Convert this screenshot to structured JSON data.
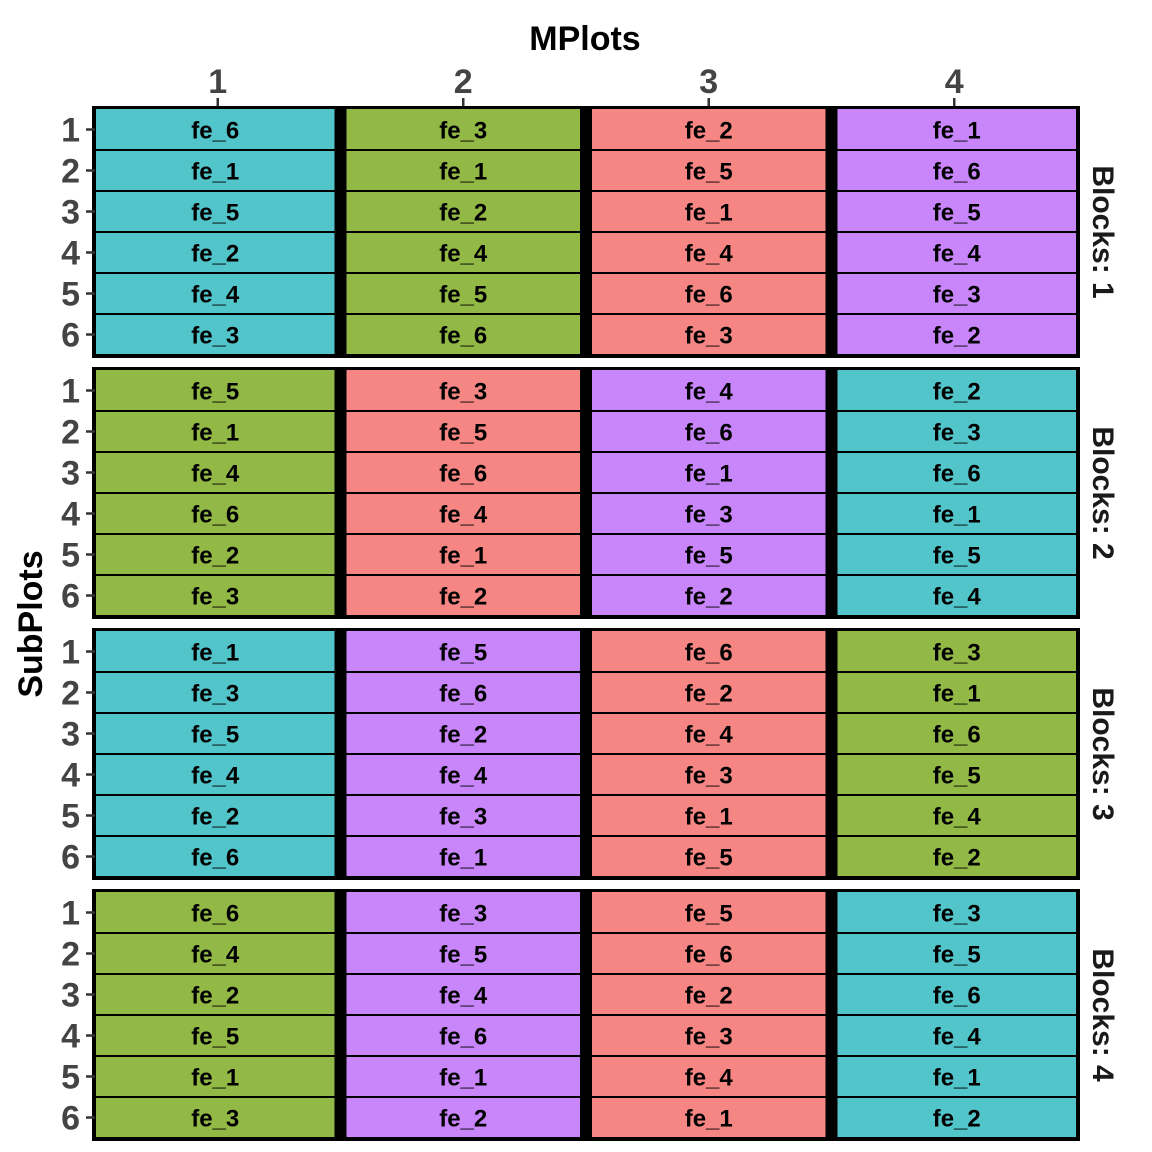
{
  "chart_data": {
    "type": "heatmap",
    "xlabel": "MPlots",
    "ylabel": "SubPlots",
    "x_ticks": [
      "1",
      "2",
      "3",
      "4"
    ],
    "y_ticks": [
      "1",
      "2",
      "3",
      "4",
      "5",
      "6"
    ],
    "colors": {
      "fe_cyan": "#51C5CA",
      "fe_green": "#92B846",
      "fe_red": "#F58683",
      "fe_purple": "#C986FB"
    },
    "panels": [
      {
        "strip_label": "Blocks: 1",
        "columns": [
          {
            "mplot": "1",
            "color": "#51C5CA",
            "labels": [
              "fe_6",
              "fe_1",
              "fe_5",
              "fe_2",
              "fe_4",
              "fe_3"
            ]
          },
          {
            "mplot": "2",
            "color": "#92B846",
            "labels": [
              "fe_3",
              "fe_1",
              "fe_2",
              "fe_4",
              "fe_5",
              "fe_6"
            ]
          },
          {
            "mplot": "3",
            "color": "#F58683",
            "labels": [
              "fe_2",
              "fe_5",
              "fe_1",
              "fe_4",
              "fe_6",
              "fe_3"
            ]
          },
          {
            "mplot": "4",
            "color": "#C986FB",
            "labels": [
              "fe_1",
              "fe_6",
              "fe_5",
              "fe_4",
              "fe_3",
              "fe_2"
            ]
          }
        ]
      },
      {
        "strip_label": "Blocks: 2",
        "columns": [
          {
            "mplot": "1",
            "color": "#92B846",
            "labels": [
              "fe_5",
              "fe_1",
              "fe_4",
              "fe_6",
              "fe_2",
              "fe_3"
            ]
          },
          {
            "mplot": "2",
            "color": "#F58683",
            "labels": [
              "fe_3",
              "fe_5",
              "fe_6",
              "fe_4",
              "fe_1",
              "fe_2"
            ]
          },
          {
            "mplot": "3",
            "color": "#C986FB",
            "labels": [
              "fe_4",
              "fe_6",
              "fe_1",
              "fe_3",
              "fe_5",
              "fe_2"
            ]
          },
          {
            "mplot": "4",
            "color": "#51C5CA",
            "labels": [
              "fe_2",
              "fe_3",
              "fe_6",
              "fe_1",
              "fe_5",
              "fe_4"
            ]
          }
        ]
      },
      {
        "strip_label": "Blocks: 3",
        "columns": [
          {
            "mplot": "1",
            "color": "#51C5CA",
            "labels": [
              "fe_1",
              "fe_3",
              "fe_5",
              "fe_4",
              "fe_2",
              "fe_6"
            ]
          },
          {
            "mplot": "2",
            "color": "#C986FB",
            "labels": [
              "fe_5",
              "fe_6",
              "fe_2",
              "fe_4",
              "fe_3",
              "fe_1"
            ]
          },
          {
            "mplot": "3",
            "color": "#F58683",
            "labels": [
              "fe_6",
              "fe_2",
              "fe_4",
              "fe_3",
              "fe_1",
              "fe_5"
            ]
          },
          {
            "mplot": "4",
            "color": "#92B846",
            "labels": [
              "fe_3",
              "fe_1",
              "fe_6",
              "fe_5",
              "fe_4",
              "fe_2"
            ]
          }
        ]
      },
      {
        "strip_label": "Blocks: 4",
        "columns": [
          {
            "mplot": "1",
            "color": "#92B846",
            "labels": [
              "fe_6",
              "fe_4",
              "fe_2",
              "fe_5",
              "fe_1",
              "fe_3"
            ]
          },
          {
            "mplot": "2",
            "color": "#C986FB",
            "labels": [
              "fe_3",
              "fe_5",
              "fe_4",
              "fe_6",
              "fe_1",
              "fe_2"
            ]
          },
          {
            "mplot": "3",
            "color": "#F58683",
            "labels": [
              "fe_5",
              "fe_6",
              "fe_2",
              "fe_3",
              "fe_4",
              "fe_1"
            ]
          },
          {
            "mplot": "4",
            "color": "#51C5CA",
            "labels": [
              "fe_3",
              "fe_5",
              "fe_6",
              "fe_4",
              "fe_1",
              "fe_2"
            ]
          }
        ]
      }
    ]
  }
}
